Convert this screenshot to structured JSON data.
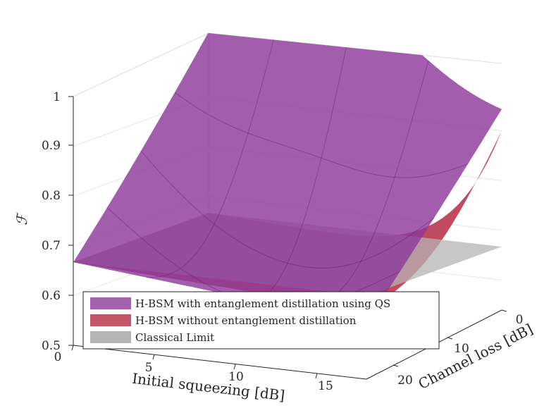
{
  "chart_data": {
    "type": "surface3d",
    "title": "",
    "zlabel": "ℱ",
    "xlabel": "Initial squeezing [dB]",
    "ylabel": "Channel loss [dB]",
    "xlim": [
      0,
      18
    ],
    "ylim": [
      0,
      25
    ],
    "zlim": [
      0.5,
      1.0
    ],
    "z_ticks": [
      "0.5",
      "0.6",
      "0.7",
      "0.8",
      "0.9",
      "1"
    ],
    "x_ticks": [
      "0",
      "5",
      "10",
      "15"
    ],
    "y_ticks": [
      "0",
      "10",
      "20"
    ],
    "grid": true,
    "legend_position": "bottom-left",
    "series": [
      {
        "name": "H-BSM with entanglement distillation using QS",
        "color": "#8e3b9b",
        "corner_values": [
          {
            "squeezing_db": 0,
            "loss_db": 0,
            "fidelity": 1.0
          },
          {
            "squeezing_db": 0,
            "loss_db": 25,
            "fidelity": 0.667
          },
          {
            "squeezing_db": 18,
            "loss_db": 25,
            "fidelity": 0.612
          },
          {
            "squeezing_db": 18,
            "loss_db": 0,
            "fidelity": 0.93
          }
        ]
      },
      {
        "name": "H-BSM without entanglement distillation",
        "color": "#b72a44",
        "corner_values": [
          {
            "squeezing_db": 0,
            "loss_db": 0,
            "fidelity": 0.667
          },
          {
            "squeezing_db": 0,
            "loss_db": 25,
            "fidelity": 0.667
          },
          {
            "squeezing_db": 18,
            "loss_db": 25,
            "fidelity": 0.64
          },
          {
            "squeezing_db": 18,
            "loss_db": 0,
            "fidelity": 0.93
          }
        ]
      },
      {
        "name": "Classical Limit",
        "color": "#b4b4b4",
        "value": 0.667
      }
    ]
  }
}
